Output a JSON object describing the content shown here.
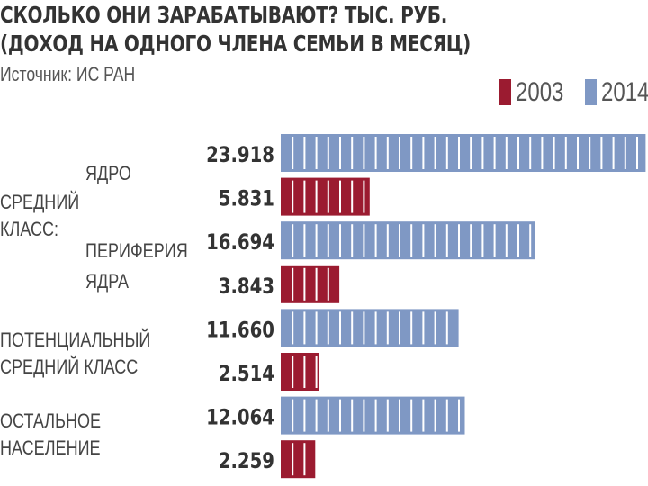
{
  "header": {
    "title_line1": "СКОЛЬКО ОНИ ЗАРАБАТЫВАЮТ? ТЫС. РУБ.",
    "title_line2": "(ДОХОД НА ОДНОГО ЧЛЕНА СЕМЬИ В МЕСЯЦ)",
    "source": "Источник: ИС РАН"
  },
  "colors": {
    "y2003": "#9b1b30",
    "y2014": "#7f98c4"
  },
  "chart_data": {
    "type": "bar",
    "orientation": "horizontal",
    "unit": "ТЫС. РУБ.",
    "legend": [
      "2003",
      "2014"
    ],
    "legend_position": "top-right",
    "grid": false,
    "xlim": [
      0,
      24
    ],
    "groups": [
      {
        "label_lines": [
          "СРЕДНИЙ",
          "КЛАСС:"
        ]
      },
      {
        "label_lines": [
          "ЯДРО"
        ]
      },
      {
        "label_lines": [
          "ПЕРИФЕРИЯ",
          "ЯДРА"
        ]
      },
      {
        "label_lines": [
          "ПОТЕНЦИАЛЬНЫЙ",
          "СРЕДНИЙ КЛАСС"
        ]
      },
      {
        "label_lines": [
          "ОСТАЛЬНОЕ",
          "НАСЕЛЕНИЕ"
        ]
      }
    ],
    "bars": [
      {
        "category": "ЯДРО",
        "series": "2014",
        "value": 23.918,
        "label": "23.918"
      },
      {
        "category": "ЯДРО",
        "series": "2003",
        "value": 5.831,
        "label": "5.831"
      },
      {
        "category": "ПЕРИФЕРИЯ ЯДРА",
        "series": "2014",
        "value": 16.694,
        "label": "16.694"
      },
      {
        "category": "ПЕРИФЕРИЯ ЯДРА",
        "series": "2003",
        "value": 3.843,
        "label": "3.843"
      },
      {
        "category": "ПОТЕНЦИАЛЬНЫЙ СРЕДНИЙ КЛАСС",
        "series": "2014",
        "value": 11.66,
        "label": "11.660"
      },
      {
        "category": "ПОТЕНЦИАЛЬНЫЙ СРЕДНИЙ КЛАСС",
        "series": "2003",
        "value": 2.514,
        "label": "2.514"
      },
      {
        "category": "ОСТАЛЬНОЕ НАСЕЛЕНИЕ",
        "series": "2014",
        "value": 12.064,
        "label": "12.064"
      },
      {
        "category": "ОСТАЛЬНОЕ НАСЕЛЕНИЕ",
        "series": "2003",
        "value": 2.259,
        "label": "2.259"
      }
    ]
  }
}
